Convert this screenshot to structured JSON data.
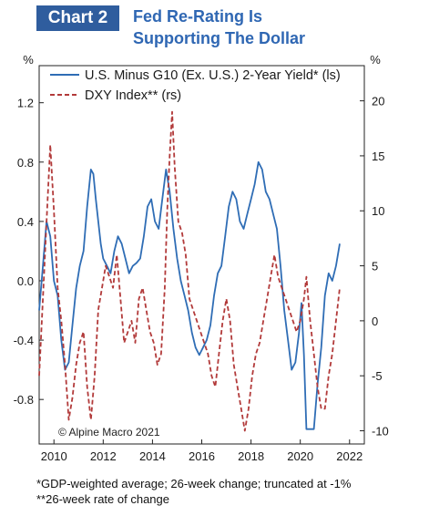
{
  "header": {
    "chart_label": "Chart 2",
    "title_line1": "Fed Re-Rating Is",
    "title_line2": "Supporting The Dollar",
    "bar_color": "#2f5d9e",
    "title_color": "#2f67b3"
  },
  "footnotes": {
    "line1": "*GDP-weighted average; 26-week change; truncated at -1%",
    "line2": "**26-week rate of change"
  },
  "chart_data": {
    "type": "line",
    "copyright": "© Alpine Macro 2021",
    "left_axis": {
      "label": "%",
      "min": -1.1,
      "max": 1.45,
      "ticks": [
        1.2,
        0.8,
        0.4,
        0.0,
        -0.4,
        -0.8
      ],
      "tick_labels": [
        "1.2",
        "0.8",
        "0.4",
        "0.0",
        "-0.4",
        "-0.8"
      ]
    },
    "right_axis": {
      "label": "%",
      "min": -11.2,
      "max": 23.2,
      "ticks": [
        20,
        15,
        10,
        5,
        0,
        -5,
        -10
      ],
      "tick_labels": [
        "20",
        "15",
        "10",
        "5",
        "0",
        "-5",
        "-10"
      ]
    },
    "x_axis": {
      "min": 2009.4,
      "max": 2022.6,
      "ticks": [
        2010,
        2012,
        2014,
        2016,
        2018,
        2020,
        2022
      ],
      "tick_labels": [
        "2010",
        "2012",
        "2014",
        "2016",
        "2018",
        "2020",
        "2022"
      ]
    },
    "grid": false,
    "legend_position": "top-left",
    "series": [
      {
        "name": "U.S. Minus G10 (Ex. U.S.) 2-Year Yield* (ls)",
        "axis": "left",
        "color": "#2f6db5",
        "dash": "solid",
        "x": [
          2009.4,
          2009.55,
          2009.7,
          2009.85,
          2010.0,
          2010.15,
          2010.3,
          2010.45,
          2010.6,
          2010.75,
          2010.9,
          2011.05,
          2011.2,
          2011.35,
          2011.5,
          2011.6,
          2011.7,
          2011.8,
          2011.9,
          2012.0,
          2012.15,
          2012.3,
          2012.45,
          2012.6,
          2012.75,
          2012.9,
          2013.05,
          2013.2,
          2013.35,
          2013.5,
          2013.65,
          2013.8,
          2013.95,
          2014.1,
          2014.25,
          2014.4,
          2014.55,
          2014.7,
          2014.85,
          2015.0,
          2015.15,
          2015.3,
          2015.45,
          2015.6,
          2015.75,
          2015.9,
          2016.05,
          2016.2,
          2016.35,
          2016.5,
          2016.65,
          2016.8,
          2016.95,
          2017.1,
          2017.25,
          2017.4,
          2017.55,
          2017.7,
          2017.85,
          2018.0,
          2018.15,
          2018.3,
          2018.45,
          2018.6,
          2018.75,
          2018.9,
          2019.05,
          2019.2,
          2019.35,
          2019.5,
          2019.65,
          2019.8,
          2019.95,
          2020.05,
          2020.15,
          2020.25,
          2020.4,
          2020.55,
          2020.7,
          2020.85,
          2021.0,
          2021.15,
          2021.3,
          2021.45,
          2021.6
        ],
        "y": [
          -0.2,
          0.1,
          0.4,
          0.3,
          0.0,
          -0.1,
          -0.4,
          -0.6,
          -0.55,
          -0.3,
          -0.05,
          0.1,
          0.2,
          0.5,
          0.75,
          0.72,
          0.55,
          0.4,
          0.25,
          0.15,
          0.1,
          0.05,
          0.2,
          0.3,
          0.25,
          0.15,
          0.05,
          0.1,
          0.12,
          0.15,
          0.3,
          0.5,
          0.55,
          0.4,
          0.35,
          0.55,
          0.75,
          0.6,
          0.35,
          0.15,
          0.0,
          -0.1,
          -0.2,
          -0.35,
          -0.45,
          -0.5,
          -0.45,
          -0.4,
          -0.3,
          -0.1,
          0.05,
          0.1,
          0.3,
          0.5,
          0.6,
          0.55,
          0.4,
          0.35,
          0.45,
          0.55,
          0.65,
          0.8,
          0.75,
          0.6,
          0.55,
          0.45,
          0.35,
          0.1,
          -0.2,
          -0.4,
          -0.6,
          -0.55,
          -0.35,
          -0.15,
          -0.5,
          -1.0,
          -1.0,
          -1.0,
          -0.7,
          -0.45,
          -0.1,
          0.05,
          0.0,
          0.1,
          0.25
        ]
      },
      {
        "name": "DXY Index** (rs)",
        "axis": "right",
        "color": "#b23a3a",
        "dash": "dashed",
        "x": [
          2009.4,
          2009.55,
          2009.7,
          2009.85,
          2010.0,
          2010.15,
          2010.3,
          2010.45,
          2010.6,
          2010.75,
          2010.9,
          2011.05,
          2011.2,
          2011.35,
          2011.5,
          2011.65,
          2011.8,
          2011.95,
          2012.1,
          2012.25,
          2012.4,
          2012.55,
          2012.7,
          2012.85,
          2013.0,
          2013.15,
          2013.3,
          2013.45,
          2013.6,
          2013.75,
          2013.9,
          2014.05,
          2014.2,
          2014.35,
          2014.5,
          2014.6,
          2014.7,
          2014.8,
          2014.9,
          2015.05,
          2015.2,
          2015.35,
          2015.5,
          2015.65,
          2015.8,
          2015.95,
          2016.1,
          2016.25,
          2016.4,
          2016.55,
          2016.7,
          2016.85,
          2017.0,
          2017.15,
          2017.3,
          2017.45,
          2017.6,
          2017.75,
          2017.9,
          2018.05,
          2018.2,
          2018.35,
          2018.5,
          2018.65,
          2018.8,
          2018.95,
          2019.1,
          2019.25,
          2019.4,
          2019.55,
          2019.7,
          2019.85,
          2020.0,
          2020.15,
          2020.25,
          2020.4,
          2020.55,
          2020.7,
          2020.85,
          2021.0,
          2021.15,
          2021.3,
          2021.45,
          2021.6
        ],
        "y": [
          -5,
          2,
          9,
          16,
          10,
          3,
          0,
          -4,
          -9,
          -7,
          -4,
          -2,
          -1,
          -6,
          -9,
          -5,
          1,
          3,
          5,
          4,
          3,
          6,
          2,
          -2,
          -1,
          0,
          -2,
          2,
          3,
          1,
          -1,
          -2,
          -4,
          -3,
          3,
          10,
          15,
          19,
          14,
          9,
          8,
          6,
          2,
          1,
          0,
          -1,
          -2,
          -3,
          -5,
          -6,
          -3,
          0,
          2,
          0,
          -4,
          -6,
          -8,
          -10,
          -8,
          -5,
          -3,
          -2,
          0,
          2,
          4,
          6,
          4,
          3,
          2,
          1,
          0,
          -1,
          0,
          2,
          4,
          0,
          -3,
          -6,
          -8,
          -8,
          -5,
          -3,
          0,
          3
        ]
      }
    ]
  }
}
